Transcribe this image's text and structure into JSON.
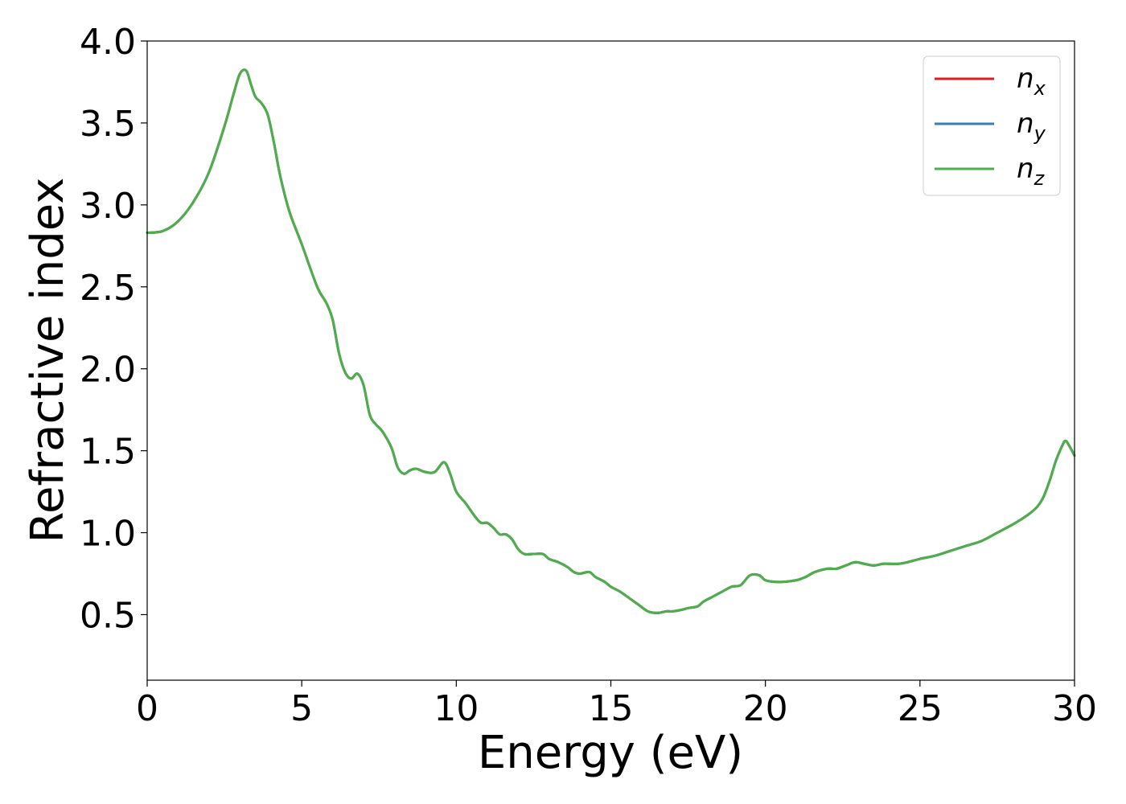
{
  "chart_data": {
    "type": "line",
    "xlabel": "Energy (eV)",
    "ylabel": "Refractive index",
    "xlim": [
      0,
      30
    ],
    "ylim": [
      0.1,
      4.0
    ],
    "xticks": [
      0,
      5,
      10,
      15,
      20,
      25,
      30
    ],
    "yticks": [
      0.5,
      1.0,
      1.5,
      2.0,
      2.5,
      3.0,
      3.5,
      4.0
    ],
    "xtick_labels": [
      "0",
      "5",
      "10",
      "15",
      "20",
      "25",
      "30"
    ],
    "ytick_labels": [
      "0.5",
      "1.0",
      "1.5",
      "2.0",
      "2.5",
      "3.0",
      "3.5",
      "4.0"
    ],
    "grid": false,
    "legend_position": "top-right",
    "x": [
      0,
      0.5,
      1,
      1.5,
      2,
      2.5,
      2.8,
      3.0,
      3.2,
      3.35,
      3.5,
      3.7,
      3.9,
      4.1,
      4.3,
      4.6,
      5.0,
      5.5,
      5.8,
      6.0,
      6.2,
      6.4,
      6.6,
      6.8,
      7.0,
      7.2,
      7.4,
      7.6,
      7.9,
      8.1,
      8.3,
      8.5,
      8.7,
      9.0,
      9.3,
      9.6,
      9.8,
      10.0,
      10.3,
      10.6,
      10.8,
      11.0,
      11.2,
      11.4,
      11.6,
      11.8,
      12.0,
      12.2,
      12.5,
      12.8,
      13.0,
      13.3,
      13.6,
      13.8,
      14.0,
      14.3,
      14.5,
      14.8,
      15.0,
      15.3,
      15.6,
      15.9,
      16.2,
      16.5,
      16.8,
      17.0,
      17.3,
      17.5,
      17.8,
      18.0,
      18.3,
      18.6,
      18.9,
      19.2,
      19.5,
      19.8,
      20.0,
      20.3,
      20.6,
      21.0,
      21.3,
      21.6,
      22.0,
      22.3,
      22.6,
      22.9,
      23.2,
      23.5,
      23.8,
      24.0,
      24.3,
      24.6,
      25.0,
      25.5,
      26.0,
      26.5,
      27.0,
      27.5,
      28.0,
      28.5,
      28.8,
      29.0,
      29.2,
      29.4,
      29.6,
      29.7,
      29.8,
      30.0
    ],
    "series": [
      {
        "name": "n_x",
        "color": "#e41a1c",
        "values": [
          2.83,
          2.84,
          2.9,
          3.02,
          3.2,
          3.48,
          3.68,
          3.8,
          3.82,
          3.74,
          3.66,
          3.62,
          3.55,
          3.38,
          3.18,
          2.96,
          2.76,
          2.5,
          2.4,
          2.3,
          2.1,
          1.98,
          1.94,
          1.97,
          1.9,
          1.72,
          1.66,
          1.62,
          1.52,
          1.4,
          1.36,
          1.38,
          1.39,
          1.37,
          1.37,
          1.43,
          1.36,
          1.25,
          1.18,
          1.1,
          1.06,
          1.06,
          1.03,
          0.99,
          0.99,
          0.96,
          0.9,
          0.87,
          0.87,
          0.87,
          0.84,
          0.82,
          0.79,
          0.76,
          0.75,
          0.76,
          0.73,
          0.7,
          0.67,
          0.64,
          0.6,
          0.56,
          0.52,
          0.51,
          0.52,
          0.52,
          0.53,
          0.54,
          0.55,
          0.58,
          0.61,
          0.64,
          0.67,
          0.68,
          0.74,
          0.74,
          0.71,
          0.7,
          0.7,
          0.71,
          0.73,
          0.76,
          0.78,
          0.78,
          0.8,
          0.82,
          0.81,
          0.8,
          0.81,
          0.81,
          0.81,
          0.82,
          0.84,
          0.86,
          0.89,
          0.92,
          0.95,
          1.0,
          1.05,
          1.11,
          1.16,
          1.22,
          1.32,
          1.44,
          1.53,
          1.56,
          1.54,
          1.47
        ]
      },
      {
        "name": "n_y",
        "color": "#377eb8",
        "values": [
          2.83,
          2.84,
          2.9,
          3.02,
          3.2,
          3.48,
          3.68,
          3.8,
          3.82,
          3.74,
          3.66,
          3.62,
          3.55,
          3.38,
          3.18,
          2.96,
          2.76,
          2.5,
          2.4,
          2.3,
          2.1,
          1.98,
          1.94,
          1.97,
          1.9,
          1.72,
          1.66,
          1.62,
          1.52,
          1.4,
          1.36,
          1.38,
          1.39,
          1.37,
          1.37,
          1.43,
          1.36,
          1.25,
          1.18,
          1.1,
          1.06,
          1.06,
          1.03,
          0.99,
          0.99,
          0.96,
          0.9,
          0.87,
          0.87,
          0.87,
          0.84,
          0.82,
          0.79,
          0.76,
          0.75,
          0.76,
          0.73,
          0.7,
          0.67,
          0.64,
          0.6,
          0.56,
          0.52,
          0.51,
          0.52,
          0.52,
          0.53,
          0.54,
          0.55,
          0.58,
          0.61,
          0.64,
          0.67,
          0.68,
          0.74,
          0.74,
          0.71,
          0.7,
          0.7,
          0.71,
          0.73,
          0.76,
          0.78,
          0.78,
          0.8,
          0.82,
          0.81,
          0.8,
          0.81,
          0.81,
          0.81,
          0.82,
          0.84,
          0.86,
          0.89,
          0.92,
          0.95,
          1.0,
          1.05,
          1.11,
          1.16,
          1.22,
          1.32,
          1.44,
          1.53,
          1.56,
          1.54,
          1.47
        ]
      },
      {
        "name": "n_z",
        "color": "#4daf4a",
        "values": [
          2.83,
          2.84,
          2.9,
          3.02,
          3.2,
          3.48,
          3.68,
          3.8,
          3.82,
          3.74,
          3.66,
          3.62,
          3.55,
          3.38,
          3.18,
          2.96,
          2.76,
          2.5,
          2.4,
          2.3,
          2.1,
          1.98,
          1.94,
          1.97,
          1.9,
          1.72,
          1.66,
          1.62,
          1.52,
          1.4,
          1.36,
          1.38,
          1.39,
          1.37,
          1.37,
          1.43,
          1.36,
          1.25,
          1.18,
          1.1,
          1.06,
          1.06,
          1.03,
          0.99,
          0.99,
          0.96,
          0.9,
          0.87,
          0.87,
          0.87,
          0.84,
          0.82,
          0.79,
          0.76,
          0.75,
          0.76,
          0.73,
          0.7,
          0.67,
          0.64,
          0.6,
          0.56,
          0.52,
          0.51,
          0.52,
          0.52,
          0.53,
          0.54,
          0.55,
          0.58,
          0.61,
          0.64,
          0.67,
          0.68,
          0.74,
          0.74,
          0.71,
          0.7,
          0.7,
          0.71,
          0.73,
          0.76,
          0.78,
          0.78,
          0.8,
          0.82,
          0.81,
          0.8,
          0.81,
          0.81,
          0.81,
          0.82,
          0.84,
          0.86,
          0.89,
          0.92,
          0.95,
          1.0,
          1.05,
          1.11,
          1.16,
          1.22,
          1.32,
          1.44,
          1.53,
          1.56,
          1.54,
          1.47
        ]
      }
    ],
    "legend": [
      {
        "base": "n",
        "sub": "x"
      },
      {
        "base": "n",
        "sub": "y"
      },
      {
        "base": "n",
        "sub": "z"
      }
    ]
  }
}
